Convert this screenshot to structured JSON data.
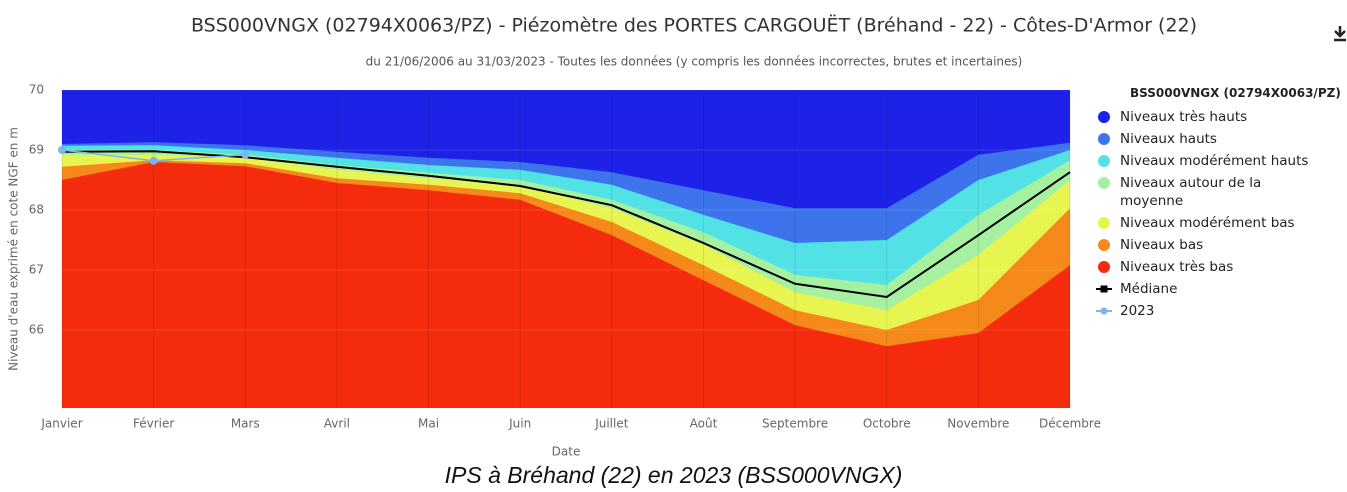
{
  "chart_data": {
    "type": "area",
    "title": "BSS000VNGX (02794X0063/PZ) - Piézomètre des PORTES CARGOUËT (Bréhand - 22) - Côtes-D'Armor (22)",
    "subtitle": "du 21/06/2006 au 31/03/2023 - Toutes les données (y compris les données incorrectes, brutes et incertaines)",
    "x_label": "Date",
    "y_label": "Niveau d'eau exprimé en cote NGF en m",
    "legend_title": "BSS000VNGX (02794X0063/PZ)",
    "caption": "IPS à Bréhand (22) en 2023 (BSS000VNGX)",
    "categories": [
      "Janvier",
      "Février",
      "Mars",
      "Avril",
      "Mai",
      "Juin",
      "Juillet",
      "Août",
      "Septembre",
      "Octobre",
      "Novembre",
      "Décembre"
    ],
    "ylim": [
      64.7,
      70
    ],
    "yticks": [
      66,
      67,
      68,
      69,
      70
    ],
    "series": [
      {
        "name": "Niveaux très hauts",
        "type": "area",
        "color": "#1e22e6",
        "values": [
          70,
          70,
          70,
          70,
          70,
          70,
          70,
          70,
          70,
          70,
          70,
          70
        ]
      },
      {
        "name": "Niveaux hauts",
        "type": "area",
        "color": "#3d74ec",
        "values": [
          69.1,
          69.13,
          69.08,
          68.97,
          68.87,
          68.8,
          68.63,
          68.33,
          68.03,
          68.03,
          68.92,
          69.12
        ]
      },
      {
        "name": "Niveaux modérément hauts",
        "type": "area",
        "color": "#52e2e6",
        "values": [
          69.07,
          69.08,
          69.0,
          68.87,
          68.75,
          68.67,
          68.42,
          67.92,
          67.45,
          67.5,
          68.5,
          69.0
        ]
      },
      {
        "name": "Niveaux autour de la moyenne",
        "type": "area",
        "color": "#a6f0a2",
        "values": [
          69.0,
          69.0,
          68.92,
          68.75,
          68.62,
          68.5,
          68.17,
          67.63,
          66.92,
          66.75,
          67.92,
          68.83
        ]
      },
      {
        "name": "Niveaux modérément bas",
        "type": "area",
        "color": "#e8f550",
        "values": [
          68.92,
          68.92,
          68.87,
          68.67,
          68.53,
          68.4,
          68.03,
          67.42,
          66.63,
          66.33,
          67.25,
          68.5
        ]
      },
      {
        "name": "Niveaux bas",
        "type": "area",
        "color": "#f58a1a",
        "values": [
          68.72,
          68.83,
          68.78,
          68.53,
          68.42,
          68.28,
          67.8,
          67.08,
          66.33,
          66.0,
          66.5,
          68.03
        ]
      },
      {
        "name": "Niveaux très bas",
        "type": "area",
        "color": "#f42b0c",
        "values": [
          68.5,
          68.8,
          68.73,
          68.45,
          68.33,
          68.17,
          67.58,
          66.83,
          66.08,
          65.73,
          65.95,
          67.08
        ]
      },
      {
        "name": "Médiane",
        "type": "line",
        "color": "#000000",
        "values": [
          68.97,
          68.98,
          68.88,
          68.72,
          68.57,
          68.4,
          68.08,
          67.45,
          66.77,
          66.55,
          67.58,
          68.63
        ]
      },
      {
        "name": "2023",
        "type": "line",
        "color": "#7cb5ec",
        "values": [
          69.0,
          68.82,
          68.92,
          null,
          null,
          null,
          null,
          null,
          null,
          null,
          null,
          null
        ]
      }
    ]
  }
}
